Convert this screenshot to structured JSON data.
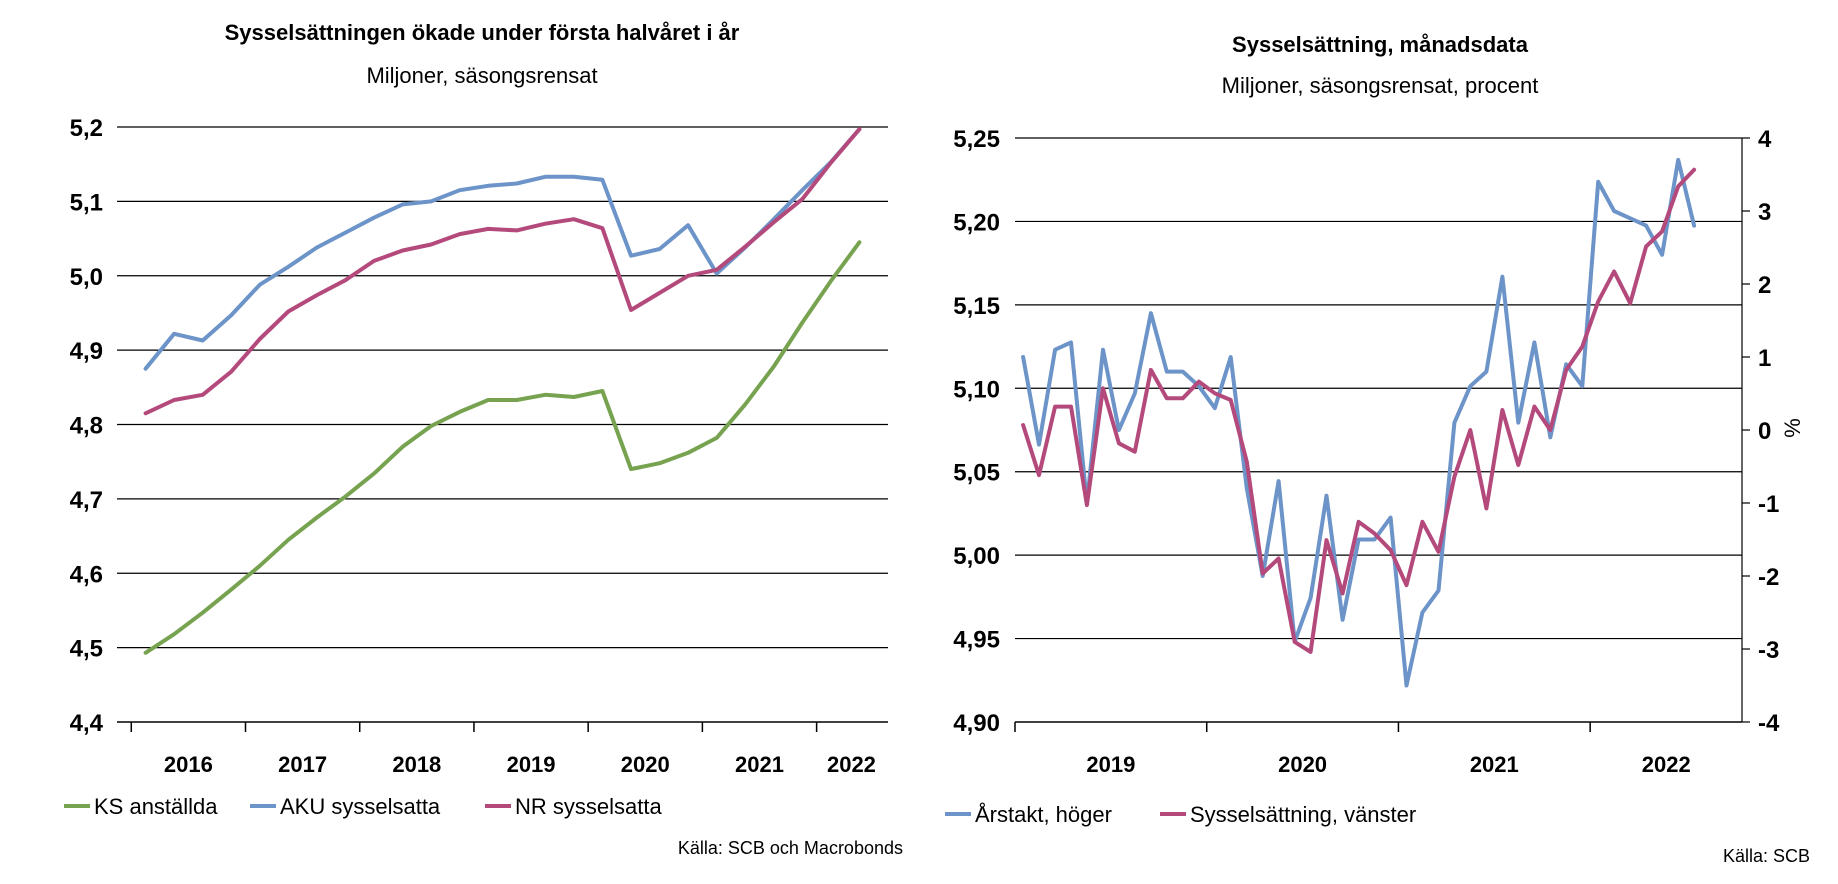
{
  "chart_data": [
    {
      "type": "line",
      "title": "Sysselsättningen ökade under första halvåret i år",
      "subtitle": "Miljoner, säsongsrensat",
      "source": "Källa: SCB och Macrobonds",
      "ylim": [
        4.4,
        5.2
      ],
      "yticks": [
        "4,4",
        "4,5",
        "4,6",
        "4,7",
        "4,8",
        "4,9",
        "5,0",
        "5,1",
        "5,2"
      ],
      "xlim": [
        2015.75,
        2022.5
      ],
      "xticks": [
        "2016",
        "2017",
        "2018",
        "2019",
        "2020",
        "2021",
        "2022"
      ],
      "grid": true,
      "legend": "bottom",
      "series": [
        {
          "name": "KS anställda",
          "color": "#77a350",
          "points": [
            [
              2016.0,
              4.493
            ],
            [
              2016.25,
              4.518
            ],
            [
              2016.5,
              4.547
            ],
            [
              2016.75,
              4.578
            ],
            [
              2017.0,
              4.61
            ],
            [
              2017.25,
              4.645
            ],
            [
              2017.5,
              4.675
            ],
            [
              2017.75,
              4.703
            ],
            [
              2018.0,
              4.734
            ],
            [
              2018.25,
              4.77
            ],
            [
              2018.5,
              4.798
            ],
            [
              2018.75,
              4.817
            ],
            [
              2019.0,
              4.833
            ],
            [
              2019.25,
              4.833
            ],
            [
              2019.5,
              4.84
            ],
            [
              2019.75,
              4.837
            ],
            [
              2020.0,
              4.845
            ],
            [
              2020.25,
              4.74
            ],
            [
              2020.5,
              4.748
            ],
            [
              2020.75,
              4.762
            ],
            [
              2021.0,
              4.782
            ],
            [
              2021.25,
              4.827
            ],
            [
              2021.5,
              4.878
            ],
            [
              2021.75,
              4.937
            ],
            [
              2022.0,
              4.993
            ],
            [
              2022.25,
              5.045
            ]
          ]
        },
        {
          "name": "AKU sysselsatta",
          "color": "#6c94c8",
          "points": [
            [
              2016.0,
              4.875
            ],
            [
              2016.25,
              4.922
            ],
            [
              2016.5,
              4.913
            ],
            [
              2016.75,
              4.947
            ],
            [
              2017.0,
              4.988
            ],
            [
              2017.25,
              5.012
            ],
            [
              2017.5,
              5.038
            ],
            [
              2017.75,
              5.058
            ],
            [
              2018.0,
              5.078
            ],
            [
              2018.25,
              5.096
            ],
            [
              2018.5,
              5.1
            ],
            [
              2018.75,
              5.115
            ],
            [
              2019.0,
              5.121
            ],
            [
              2019.25,
              5.124
            ],
            [
              2019.5,
              5.133
            ],
            [
              2019.75,
              5.133
            ],
            [
              2020.0,
              5.129
            ],
            [
              2020.25,
              5.027
            ],
            [
              2020.5,
              5.036
            ],
            [
              2020.75,
              5.068
            ],
            [
              2021.0,
              5.003
            ],
            [
              2021.25,
              5.038
            ],
            [
              2021.5,
              5.076
            ],
            [
              2021.75,
              5.115
            ],
            [
              2022.0,
              5.153
            ],
            [
              2022.25,
              5.197
            ]
          ]
        },
        {
          "name": "NR sysselsatta",
          "color": "#b4497c",
          "points": [
            [
              2016.0,
              4.815
            ],
            [
              2016.25,
              4.833
            ],
            [
              2016.5,
              4.84
            ],
            [
              2016.75,
              4.871
            ],
            [
              2017.0,
              4.915
            ],
            [
              2017.25,
              4.952
            ],
            [
              2017.5,
              4.974
            ],
            [
              2017.75,
              4.994
            ],
            [
              2018.0,
              5.02
            ],
            [
              2018.25,
              5.034
            ],
            [
              2018.5,
              5.042
            ],
            [
              2018.75,
              5.056
            ],
            [
              2019.0,
              5.063
            ],
            [
              2019.25,
              5.061
            ],
            [
              2019.5,
              5.07
            ],
            [
              2019.75,
              5.076
            ],
            [
              2020.0,
              5.064
            ],
            [
              2020.25,
              4.954
            ],
            [
              2020.5,
              4.977
            ],
            [
              2020.75,
              5.0
            ],
            [
              2021.0,
              5.008
            ],
            [
              2021.25,
              5.039
            ],
            [
              2021.5,
              5.072
            ],
            [
              2021.75,
              5.103
            ],
            [
              2022.0,
              5.152
            ],
            [
              2022.25,
              5.197
            ]
          ]
        }
      ]
    },
    {
      "type": "line",
      "title": "Sysselsättning, månadsdata",
      "subtitle": "Miljoner, säsongsrensat, procent",
      "source": "Källa: SCB",
      "ylim": [
        4.9,
        5.25
      ],
      "yticks": [
        "4,90",
        "4,95",
        "5,00",
        "5,05",
        "5,10",
        "5,15",
        "5,20",
        "5,25"
      ],
      "y2lim": [
        -4,
        4
      ],
      "y2ticks": [
        "-4",
        "-3",
        "-2",
        "-1",
        "0",
        "1",
        "2",
        "3",
        "4"
      ],
      "y2label": "%",
      "xlim": [
        2018.583,
        2022.375
      ],
      "xticks": [
        "2019",
        "2020",
        "2021",
        "2022"
      ],
      "grid": true,
      "legend": "bottom",
      "series": [
        {
          "name": "Årstakt, höger",
          "axis": "right",
          "color": "#6c94c8",
          "points": [
            [
              2018.625,
              1.0
            ],
            [
              2018.708,
              -0.2
            ],
            [
              2018.792,
              1.1
            ],
            [
              2018.875,
              1.2
            ],
            [
              2018.958,
              -1.0
            ],
            [
              2019.042,
              1.1
            ],
            [
              2019.125,
              0.0
            ],
            [
              2019.208,
              0.5
            ],
            [
              2019.292,
              1.6
            ],
            [
              2019.375,
              0.8
            ],
            [
              2019.458,
              0.8
            ],
            [
              2019.542,
              0.6
            ],
            [
              2019.625,
              0.3
            ],
            [
              2019.708,
              1.0
            ],
            [
              2019.792,
              -0.8
            ],
            [
              2019.875,
              -2.0
            ],
            [
              2019.958,
              -0.7
            ],
            [
              2020.042,
              -2.9
            ],
            [
              2020.125,
              -2.3
            ],
            [
              2020.208,
              -0.9
            ],
            [
              2020.292,
              -2.6
            ],
            [
              2020.375,
              -1.5
            ],
            [
              2020.458,
              -1.5
            ],
            [
              2020.542,
              -1.2
            ],
            [
              2020.625,
              -3.5
            ],
            [
              2020.708,
              -2.5
            ],
            [
              2020.792,
              -2.2
            ],
            [
              2020.875,
              0.1
            ],
            [
              2020.958,
              0.6
            ],
            [
              2021.042,
              0.8
            ],
            [
              2021.125,
              2.1
            ],
            [
              2021.208,
              0.1
            ],
            [
              2021.292,
              1.2
            ],
            [
              2021.375,
              -0.1
            ],
            [
              2021.458,
              0.9
            ],
            [
              2021.542,
              0.6
            ],
            [
              2021.625,
              3.4
            ],
            [
              2021.708,
              3.0
            ],
            [
              2021.792,
              2.9
            ],
            [
              2021.875,
              2.8
            ],
            [
              2021.958,
              2.4
            ],
            [
              2022.042,
              3.7
            ],
            [
              2022.125,
              2.8
            ]
          ]
        },
        {
          "name": "Sysselsättning, vänster",
          "axis": "left",
          "color": "#b4497c",
          "points": [
            [
              2018.625,
              5.078
            ],
            [
              2018.708,
              5.048
            ],
            [
              2018.792,
              5.089
            ],
            [
              2018.875,
              5.089
            ],
            [
              2018.958,
              5.03
            ],
            [
              2019.042,
              5.1
            ],
            [
              2019.125,
              5.067
            ],
            [
              2019.208,
              5.062
            ],
            [
              2019.292,
              5.111
            ],
            [
              2019.375,
              5.094
            ],
            [
              2019.458,
              5.094
            ],
            [
              2019.542,
              5.104
            ],
            [
              2019.625,
              5.097
            ],
            [
              2019.708,
              5.093
            ],
            [
              2019.792,
              5.056
            ],
            [
              2019.875,
              4.989
            ],
            [
              2019.958,
              4.998
            ],
            [
              2020.042,
              4.948
            ],
            [
              2020.125,
              4.942
            ],
            [
              2020.208,
              5.009
            ],
            [
              2020.292,
              4.977
            ],
            [
              2020.375,
              5.02
            ],
            [
              2020.458,
              5.013
            ],
            [
              2020.542,
              5.003
            ],
            [
              2020.625,
              4.982
            ],
            [
              2020.708,
              5.02
            ],
            [
              2020.792,
              5.002
            ],
            [
              2020.875,
              5.047
            ],
            [
              2020.958,
              5.075
            ],
            [
              2021.042,
              5.028
            ],
            [
              2021.125,
              5.087
            ],
            [
              2021.208,
              5.054
            ],
            [
              2021.292,
              5.089
            ],
            [
              2021.375,
              5.075
            ],
            [
              2021.458,
              5.111
            ],
            [
              2021.542,
              5.125
            ],
            [
              2021.625,
              5.152
            ],
            [
              2021.708,
              5.17
            ],
            [
              2021.792,
              5.151
            ],
            [
              2021.875,
              5.185
            ],
            [
              2021.958,
              5.194
            ],
            [
              2022.042,
              5.221
            ],
            [
              2022.125,
              5.231
            ]
          ]
        }
      ]
    }
  ]
}
